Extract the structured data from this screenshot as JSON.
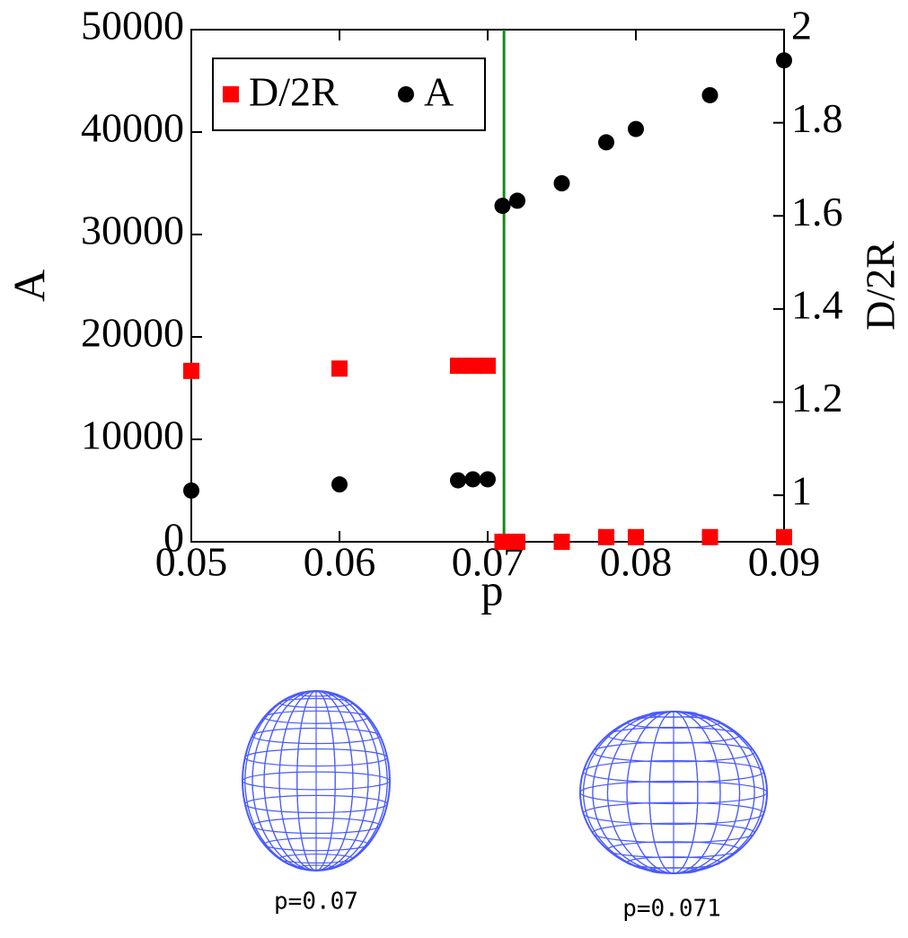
{
  "chart_data": {
    "type": "scatter",
    "xlabel": "p",
    "ylabel": "A",
    "y2label": "D/2R",
    "xlim": [
      0.05,
      0.09
    ],
    "xticks": [
      0.05,
      0.06,
      0.07,
      0.08,
      0.09
    ],
    "ylim": [
      0,
      50000
    ],
    "yticks": [
      0,
      10000,
      20000,
      30000,
      40000,
      50000
    ],
    "y2lim": [
      0.9,
      2
    ],
    "y2ticks": [
      1,
      1.2,
      1.4,
      1.6,
      1.8,
      2
    ],
    "vline": 0.0711,
    "vline_color": "#1a8a1a",
    "legend": "upper left",
    "series": [
      {
        "name": "D/2R",
        "color": "#ff0000",
        "marker": "square",
        "axis": "y2",
        "x": [
          0.05,
          0.06,
          0.068,
          0.069,
          0.07,
          0.071,
          0.072,
          0.075,
          0.078,
          0.08,
          0.085,
          0.09
        ],
        "values": [
          1.267,
          1.272,
          1.278,
          1.278,
          1.278,
          0.9,
          0.9,
          0.9,
          0.91,
          0.91,
          0.91,
          0.91
        ]
      },
      {
        "name": "A",
        "color": "#000000",
        "marker": "circle",
        "x": [
          0.05,
          0.06,
          0.068,
          0.069,
          0.07,
          0.071,
          0.072,
          0.075,
          0.078,
          0.08,
          0.085,
          0.09
        ],
        "values": [
          5000,
          5600,
          6000,
          6100,
          6100,
          32800,
          33300,
          35000,
          39000,
          40300,
          43600,
          47000
        ]
      }
    ]
  },
  "images": [
    {
      "caption": "p=0.07"
    },
    {
      "caption": "p=0.071"
    }
  ]
}
